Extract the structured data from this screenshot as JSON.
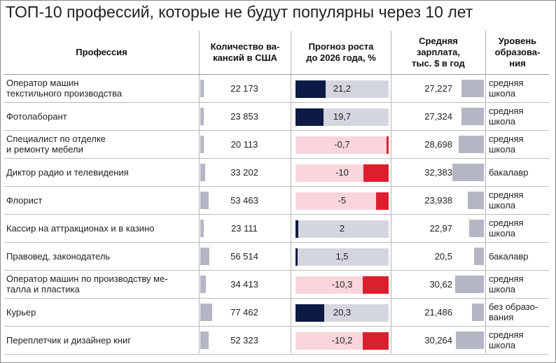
{
  "title": "ТОП-10 профессий, которые не будут популярны через 10 лет",
  "headers": {
    "profession": "Профессия",
    "vacancies": [
      "Количество ва-",
      "кансий в США"
    ],
    "growth": [
      "Прогноз роста",
      "до 2026 года, %"
    ],
    "salary": [
      "Средняя",
      "зарплата,",
      "тыс. $ в год"
    ],
    "education": [
      "Уровень",
      "образова-",
      "ния"
    ]
  },
  "colors": {
    "positive_growth": "#0c1a44",
    "negative_growth": "#dc1f2f",
    "positive_bg": "#d4d6de",
    "negative_bg": "#f8d6dc",
    "grey_bar": "#b4b7c3"
  },
  "chart_data": {
    "type": "table",
    "columns": [
      "Профессия",
      "Количество вакансий в США",
      "Прогноз роста до 2026 года, %",
      "Средняя зарплата, тыс. $ в год",
      "Уровень образования"
    ],
    "rows": [
      {
        "profession": [
          "Оператор машин",
          "текстильного производства"
        ],
        "vacancies": 22173,
        "vacancies_label": "22 173",
        "growth": 21.2,
        "growth_label": "21,2",
        "salary": 27.227,
        "salary_label": "27,227",
        "education": [
          "средняя",
          "школа"
        ]
      },
      {
        "profession": [
          "Фотолаборант"
        ],
        "vacancies": 23853,
        "vacancies_label": "23 853",
        "growth": 19.7,
        "growth_label": "19,7",
        "salary": 27.324,
        "salary_label": "27,324",
        "education": [
          "средняя",
          "школа"
        ]
      },
      {
        "profession": [
          "Специалист по отделке",
          "и ремонту мебели"
        ],
        "vacancies": 20113,
        "vacancies_label": "20 113",
        "growth": -0.7,
        "growth_label": "-0,7",
        "salary": 28.698,
        "salary_label": "28,698",
        "education": [
          "средняя",
          "школа"
        ]
      },
      {
        "profession": [
          "Диктор радио и телевидения"
        ],
        "vacancies": 33202,
        "vacancies_label": "33 202",
        "growth": -10,
        "growth_label": "-10",
        "salary": 32.383,
        "salary_label": "32,383",
        "education": [
          "бакалавр"
        ]
      },
      {
        "profession": [
          "Флорист"
        ],
        "vacancies": 53463,
        "vacancies_label": "53 463",
        "growth": -5,
        "growth_label": "-5",
        "salary": 23.938,
        "salary_label": "23,938",
        "education": [
          "средняя",
          "школа"
        ]
      },
      {
        "profession": [
          "Кассир на аттракционах и в казино"
        ],
        "vacancies": 23111,
        "vacancies_label": "23 111",
        "growth": 2,
        "growth_label": "2",
        "salary": 22.97,
        "salary_label": "22,97",
        "education": [
          "средняя",
          "школа"
        ]
      },
      {
        "profession": [
          "Правовед, законодатель"
        ],
        "vacancies": 56514,
        "vacancies_label": "56 514",
        "growth": 1.5,
        "growth_label": "1,5",
        "salary": 20.5,
        "salary_label": "20,5",
        "education": [
          "бакалавр"
        ]
      },
      {
        "profession": [
          "Оператор машин по производству ме-",
          "талла и пластика"
        ],
        "vacancies": 34413,
        "vacancies_label": "34 413",
        "growth": -10.3,
        "growth_label": "-10,3",
        "salary": 30.62,
        "salary_label": "30,62",
        "education": [
          "средняя",
          "школа"
        ]
      },
      {
        "profession": [
          "Курьер"
        ],
        "vacancies": 77462,
        "vacancies_label": "77 462",
        "growth": 20.3,
        "growth_label": "20,3",
        "salary": 21.486,
        "salary_label": "21,486",
        "education": [
          "без образо-",
          "вания"
        ]
      },
      {
        "profession": [
          "Переплетчик и дизайнер книг"
        ],
        "vacancies": 52323,
        "vacancies_label": "52 323",
        "growth": -10.2,
        "growth_label": "-10,2",
        "salary": 30.264,
        "salary_label": "30,264",
        "education": [
          "средняя",
          "школа"
        ]
      }
    ]
  }
}
